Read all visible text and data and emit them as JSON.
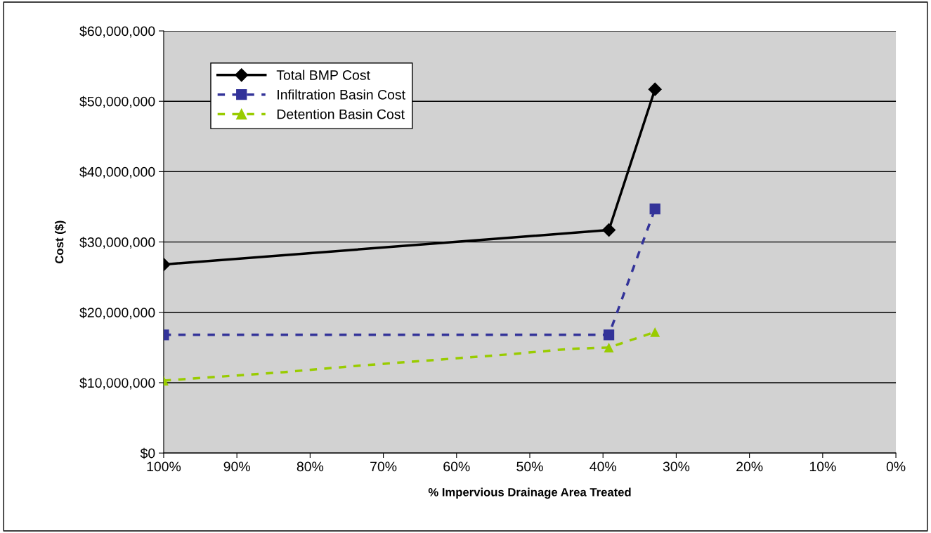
{
  "chart_data": {
    "type": "line",
    "xlabel": "% Impervious Drainage Area Treated",
    "ylabel": "Cost ($)",
    "xlim": [
      100,
      0
    ],
    "xticks": [
      {
        "value": 100,
        "label": "100%"
      },
      {
        "value": 90,
        "label": "90%"
      },
      {
        "value": 80,
        "label": "80%"
      },
      {
        "value": 70,
        "label": "70%"
      },
      {
        "value": 60,
        "label": "60%"
      },
      {
        "value": 50,
        "label": "50%"
      },
      {
        "value": 40,
        "label": "40%"
      },
      {
        "value": 30,
        "label": "30%"
      },
      {
        "value": 20,
        "label": "20%"
      },
      {
        "value": 10,
        "label": "10%"
      },
      {
        "value": 0,
        "label": "0%"
      }
    ],
    "ylim": [
      0,
      60000000
    ],
    "yticks": [
      {
        "value": 0,
        "label": "$0"
      },
      {
        "value": 10000000,
        "label": "$10,000,000"
      },
      {
        "value": 20000000,
        "label": "$20,000,000"
      },
      {
        "value": 30000000,
        "label": "$30,000,000"
      },
      {
        "value": 40000000,
        "label": "$40,000,000"
      },
      {
        "value": 50000000,
        "label": "$50,000,000"
      },
      {
        "value": 60000000,
        "label": "$60,000,000"
      }
    ],
    "grid": "y",
    "legend": "top left",
    "series": [
      {
        "name": "Total BMP Cost",
        "color": "#000000",
        "marker": "diamond",
        "line_style": "solid",
        "x": [
          100,
          39.2,
          32.9
        ],
        "values": [
          26800000,
          31700000,
          51700000
        ]
      },
      {
        "name": "Infiltration Basin Cost",
        "color": "#333399",
        "marker": "square",
        "line_style": "dashed",
        "x": [
          100,
          39.2,
          32.9
        ],
        "values": [
          16800000,
          16800000,
          34700000
        ]
      },
      {
        "type": "line",
        "color": "#99cc00",
        "marker": "none",
        "line_style": "dashed",
        "x": [
          100,
          83.6,
          73.6,
          53.2,
          44.6,
          39.2,
          32.9
        ],
        "values": [
          10300000,
          11500000,
          12400000,
          14000000,
          14800000,
          15000000,
          17200000
        ]
      },
      {
        "type": "scatter",
        "name": "Detention Basin Cost",
        "color": "#99cc00",
        "marker": "triangle",
        "line_style": "dashed",
        "x": [
          100,
          39.2,
          32.9
        ],
        "values": [
          10300000,
          15000000,
          17200000
        ]
      }
    ]
  }
}
